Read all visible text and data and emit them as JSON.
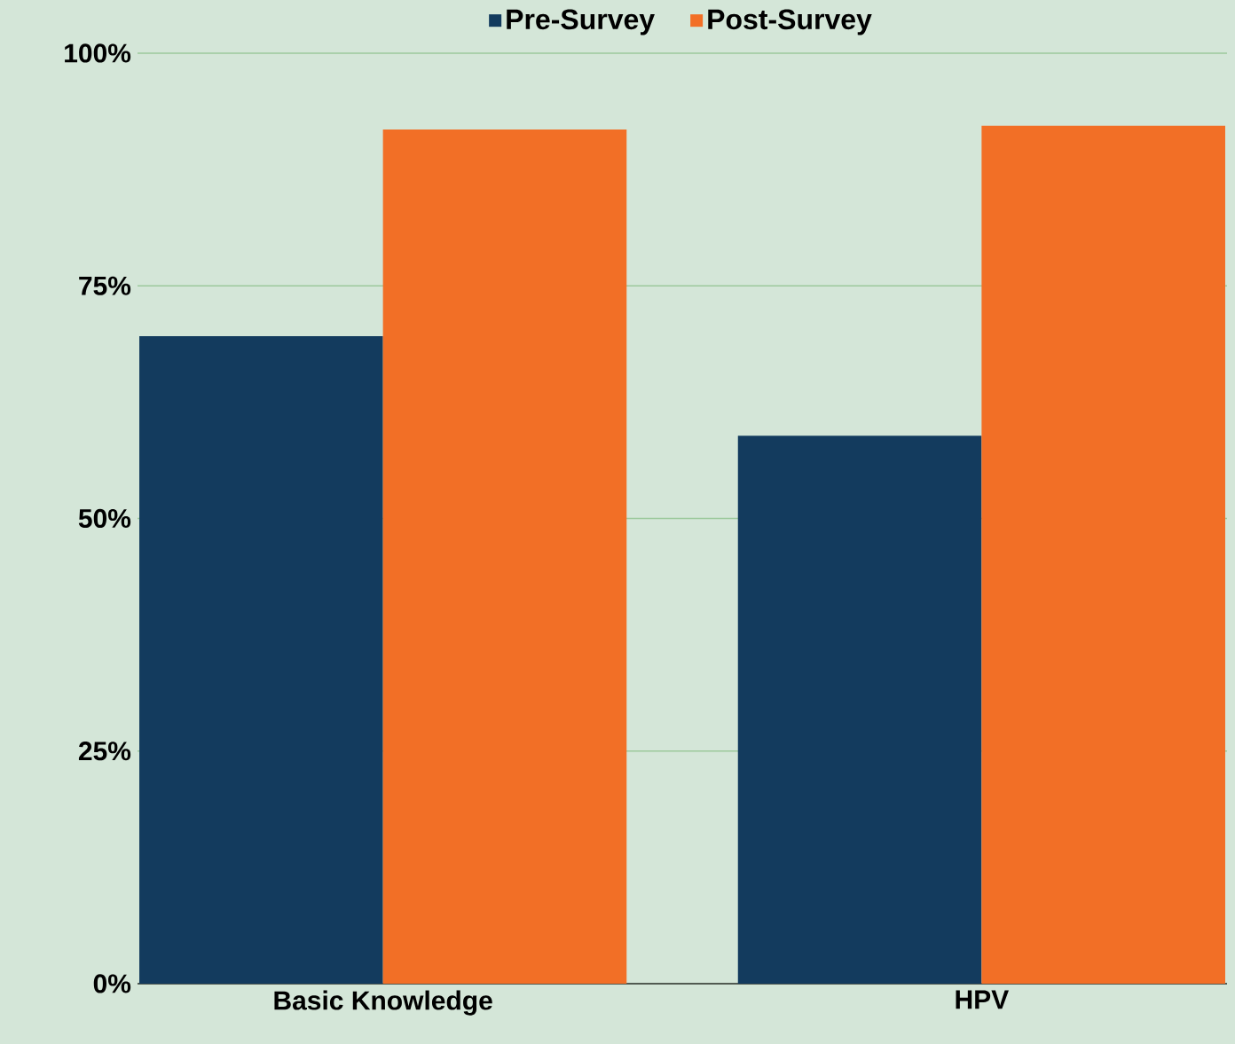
{
  "chart_data": {
    "type": "bar",
    "categories": [
      "Basic Knowledge",
      "HPV"
    ],
    "series": [
      {
        "name": "Pre-Survey",
        "color": "#133b5e",
        "values": [
          69.6,
          58.9
        ]
      },
      {
        "name": "Post-Survey",
        "color": "#f26f26",
        "values": [
          91.8,
          92.2
        ]
      }
    ],
    "ylim": [
      0,
      100
    ],
    "yticks": [
      {
        "value": 0,
        "label": "0%"
      },
      {
        "value": 25,
        "label": "25%"
      },
      {
        "value": 50,
        "label": "50%"
      },
      {
        "value": 75,
        "label": "75%"
      },
      {
        "value": 100,
        "label": "100%"
      }
    ],
    "grid": "y",
    "legend": "top"
  }
}
